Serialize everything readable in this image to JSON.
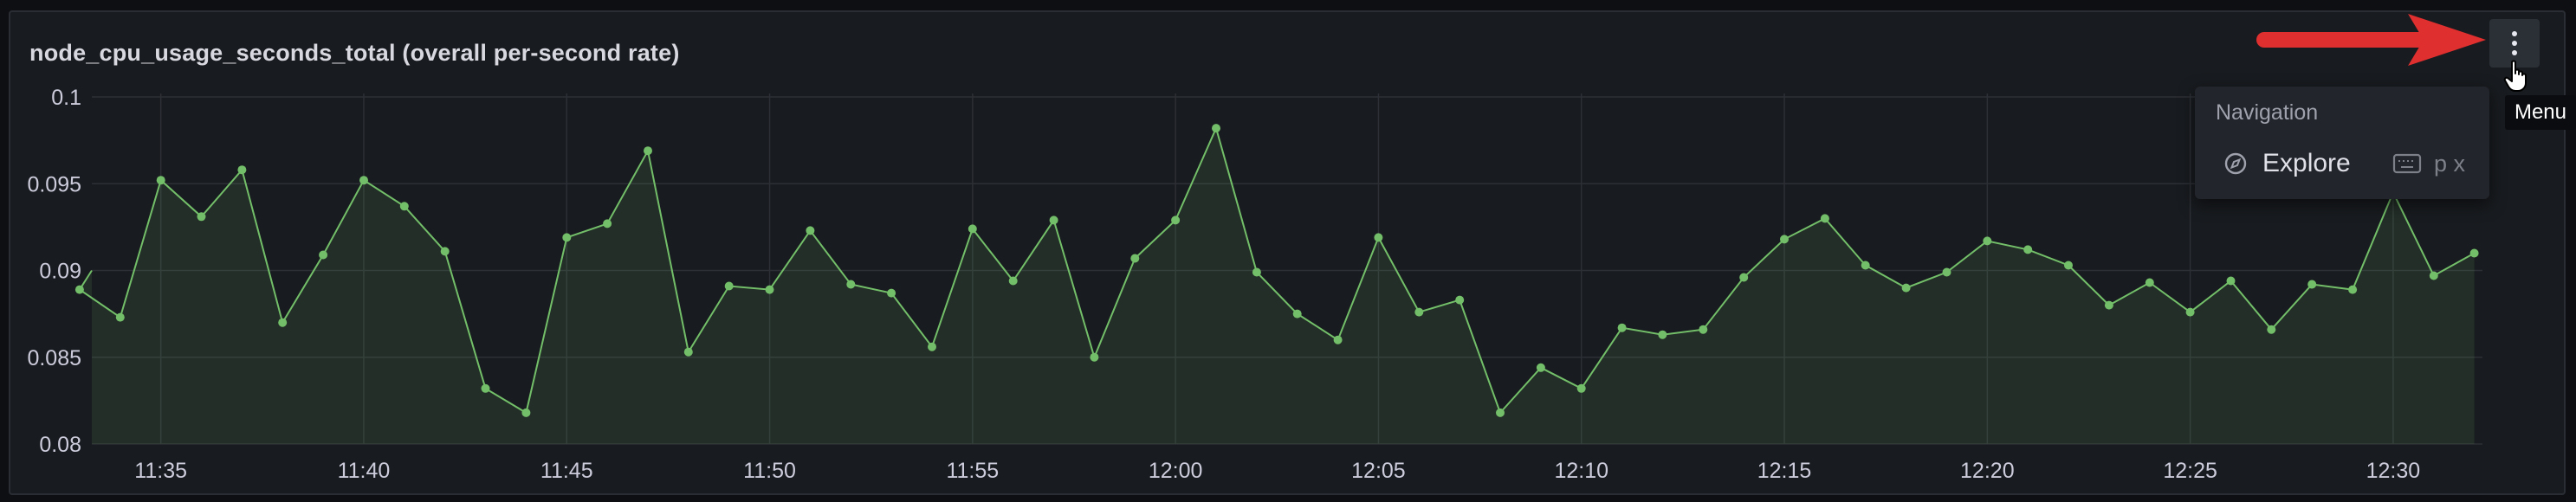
{
  "panel": {
    "title": "node_cpu_usage_seconds_total (overall per-second rate)"
  },
  "menu_button": {
    "icon": "vertical-dots-icon",
    "tooltip": "Menu"
  },
  "dropdown": {
    "heading": "Navigation",
    "items": [
      {
        "icon": "compass-icon",
        "label": "Explore",
        "shortcut_icon": "keyboard-icon",
        "shortcut": "p x"
      }
    ]
  },
  "colors": {
    "series": "#73bf69",
    "background": "#181b1f",
    "arrow": "#e02f2f"
  },
  "chart_data": {
    "type": "area",
    "title": "",
    "xlabel": "",
    "ylabel": "",
    "ylim": [
      0.08,
      0.1
    ],
    "yticks": [
      "0.08",
      "0.085",
      "0.09",
      "0.095",
      "0.1"
    ],
    "xlim": [
      "11:33",
      "12:33"
    ],
    "xticks": [
      "11:35",
      "11:40",
      "11:45",
      "11:50",
      "11:55",
      "12:00",
      "12:05",
      "12:10",
      "12:15",
      "12:20",
      "12:25",
      "12:30"
    ],
    "grid": true,
    "legend": "none",
    "series": [
      {
        "x": [
          "11:33",
          "11:34",
          "11:35",
          "11:36",
          "11:37",
          "11:38",
          "11:39",
          "11:40",
          "11:41",
          "11:42",
          "11:43",
          "11:44",
          "11:45",
          "11:46",
          "11:47",
          "11:48",
          "11:49",
          "11:50",
          "11:51",
          "11:52",
          "11:53",
          "11:54",
          "11:55",
          "11:56",
          "11:57",
          "11:58",
          "11:59",
          "12:00",
          "12:01",
          "12:02",
          "12:03",
          "12:04",
          "12:05",
          "12:06",
          "12:07",
          "12:08",
          "12:09",
          "12:10",
          "12:11",
          "12:12",
          "12:13",
          "12:14",
          "12:15",
          "12:16",
          "12:17",
          "12:18",
          "12:19",
          "12:20",
          "12:21",
          "12:22",
          "12:23",
          "12:24",
          "12:25",
          "12:26",
          "12:27",
          "12:28",
          "12:29",
          "12:30",
          "12:31",
          "12:32"
        ],
        "values": [
          0.0889,
          0.0873,
          0.0952,
          0.0931,
          0.0958,
          0.087,
          0.0909,
          0.0952,
          0.0937,
          0.0911,
          0.0832,
          0.0818,
          0.0919,
          0.0927,
          0.0969,
          0.0853,
          0.0891,
          0.0889,
          0.0923,
          0.0892,
          0.0887,
          0.0856,
          0.0924,
          0.0894,
          0.0929,
          0.085,
          0.0907,
          0.0929,
          0.0982,
          0.0899,
          0.0875,
          0.086,
          0.0919,
          0.0876,
          0.0883,
          0.0818,
          0.0844,
          0.0832,
          0.0867,
          0.0863,
          0.0866,
          0.0896,
          0.0918,
          0.093,
          0.0903,
          0.089,
          0.0899,
          0.0917,
          0.0912,
          0.0903,
          0.088,
          0.0893,
          0.0876,
          0.0894,
          0.0866,
          0.0892,
          0.0889,
          0.0945,
          0.0897,
          0.091
        ]
      }
    ]
  }
}
